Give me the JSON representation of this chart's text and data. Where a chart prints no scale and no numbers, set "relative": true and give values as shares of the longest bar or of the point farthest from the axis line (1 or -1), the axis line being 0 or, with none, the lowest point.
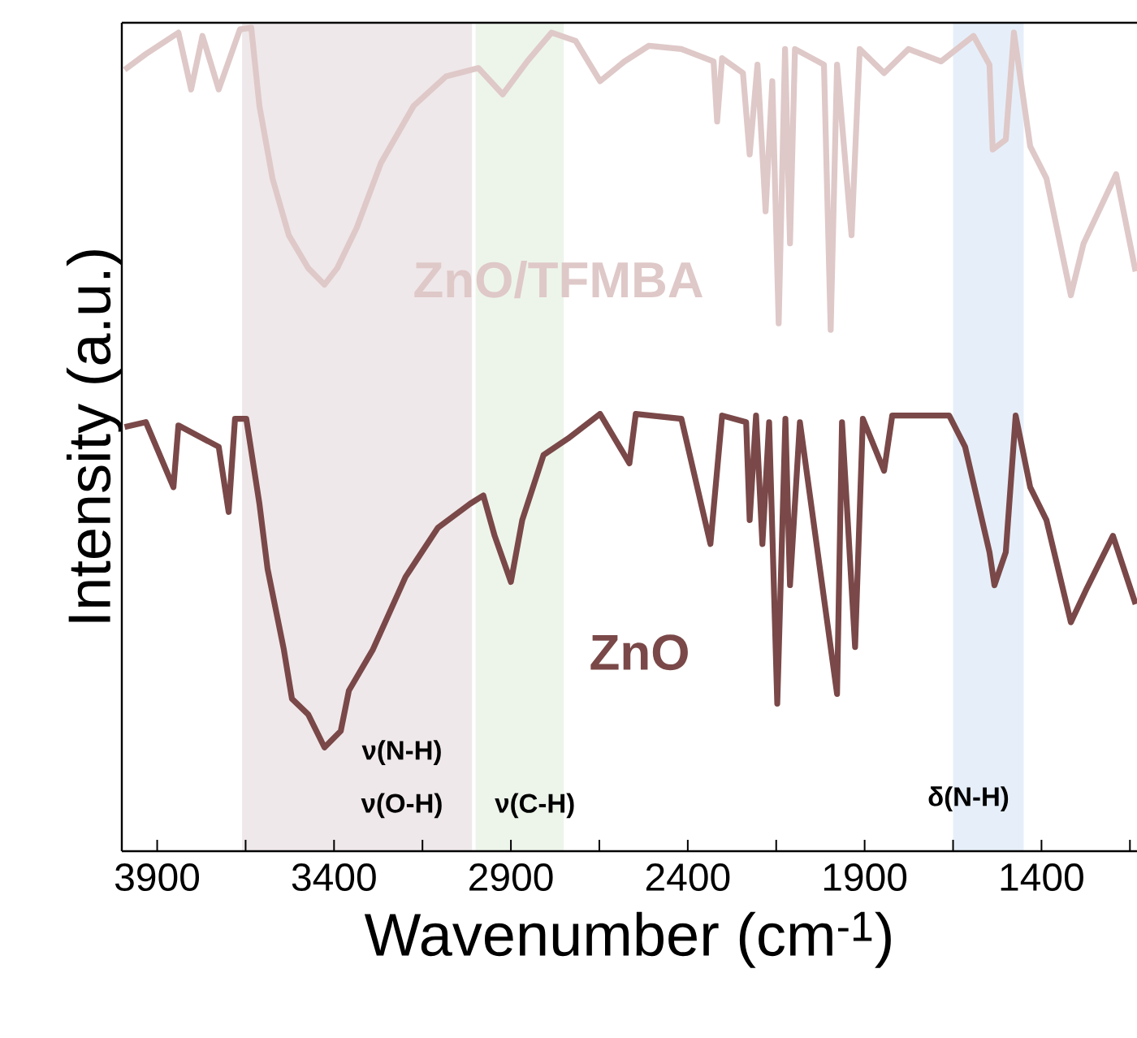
{
  "chart_data": {
    "type": "line",
    "relative": true,
    "xlabel": "Wavenumber (cm$^{-1}$)",
    "ylabel": "Intensity (a.u.)",
    "xlim": [
      4000,
      1130
    ],
    "xticks": [
      3900,
      {
        "value": 3650,
        "label": null
      },
      3400,
      {
        "value": 3150,
        "label": null
      },
      2900,
      {
        "value": 2650,
        "label": null
      },
      2400,
      {
        "value": 2150,
        "label": null
      },
      1900,
      {
        "value": 1650,
        "label": null
      },
      1400,
      {
        "value": 1150,
        "label": null
      }
    ],
    "bands": [
      {
        "axis": "x",
        "from": 3660,
        "to": 3010,
        "color": "#efe8ea"
      },
      {
        "axis": "x",
        "from": 3000,
        "to": 2750,
        "color": "#edf5ea"
      },
      {
        "axis": "x",
        "from": 1650,
        "to": 1450,
        "color": "#e6eff9"
      }
    ],
    "annotations": [
      "ν(N-H)",
      "ν(O-H)",
      "ν(C-H)",
      "δ(N-H)"
    ],
    "series": [
      {
        "name": "ZnO/TFMBA",
        "color": "#dfc8c8",
        "x": [
          3992,
          3932,
          3840,
          3804,
          3772,
          3726,
          3666,
          3634,
          3611,
          3574,
          3528,
          3473,
          3427,
          3391,
          3336,
          3267,
          3175,
          3083,
          2992,
          2923,
          2854,
          2785,
          2717,
          2648,
          2579,
          2510,
          2418,
          2327,
          2317,
          2303,
          2244,
          2225,
          2203,
          2180,
          2161,
          2143,
          2125,
          2111,
          2097,
          2015,
          1996,
          1978,
          1937,
          1914,
          1845,
          1776,
          1684,
          1592,
          1547,
          1538,
          1501,
          1478,
          1432,
          1386,
          1317,
          1281,
          1189,
          1134
        ],
        "values": [
          0.949,
          0.968,
          0.994,
          0.925,
          0.99,
          0.925,
          0.998,
          1.0,
          0.905,
          0.817,
          0.748,
          0.708,
          0.688,
          0.708,
          0.757,
          0.836,
          0.905,
          0.941,
          0.951,
          0.919,
          0.959,
          0.994,
          0.984,
          0.935,
          0.959,
          0.978,
          0.974,
          0.959,
          0.886,
          0.963,
          0.945,
          0.846,
          0.955,
          0.777,
          0.935,
          0.641,
          0.974,
          0.738,
          0.974,
          0.955,
          0.633,
          0.955,
          0.748,
          0.974,
          0.945,
          0.974,
          0.959,
          0.99,
          0.955,
          0.852,
          0.864,
          0.994,
          0.856,
          0.817,
          0.675,
          0.738,
          0.822,
          0.704
        ]
      },
      {
        "name": "ZnO",
        "color": "#7a4848",
        "x": [
          3992,
          3932,
          3854,
          3840,
          3726,
          3698,
          3680,
          3648,
          3611,
          3588,
          3542,
          3519,
          3473,
          3427,
          3381,
          3358,
          3290,
          3198,
          3106,
          3015,
          2978,
          2946,
          2900,
          2868,
          2808,
          2739,
          2648,
          2565,
          2547,
          2418,
          2336,
          2303,
          2235,
          2225,
          2207,
          2189,
          2170,
          2147,
          2124,
          2111,
          2083,
          1978,
          1964,
          1927,
          1905,
          1845,
          1822,
          1661,
          1616,
          1547,
          1533,
          1501,
          1473,
          1432,
          1386,
          1317,
          1271,
          1198,
          1134
        ],
        "values": [
          0.515,
          0.521,
          0.442,
          0.517,
          0.491,
          0.412,
          0.525,
          0.525,
          0.422,
          0.343,
          0.245,
          0.185,
          0.166,
          0.126,
          0.146,
          0.195,
          0.245,
          0.333,
          0.393,
          0.422,
          0.432,
          0.383,
          0.327,
          0.402,
          0.481,
          0.501,
          0.531,
          0.471,
          0.531,
          0.525,
          0.373,
          0.529,
          0.521,
          0.402,
          0.529,
          0.373,
          0.521,
          0.179,
          0.525,
          0.323,
          0.521,
          0.191,
          0.521,
          0.248,
          0.525,
          0.462,
          0.529,
          0.529,
          0.491,
          0.363,
          0.323,
          0.363,
          0.529,
          0.442,
          0.402,
          0.278,
          0.32,
          0.383,
          0.3
        ]
      }
    ]
  }
}
